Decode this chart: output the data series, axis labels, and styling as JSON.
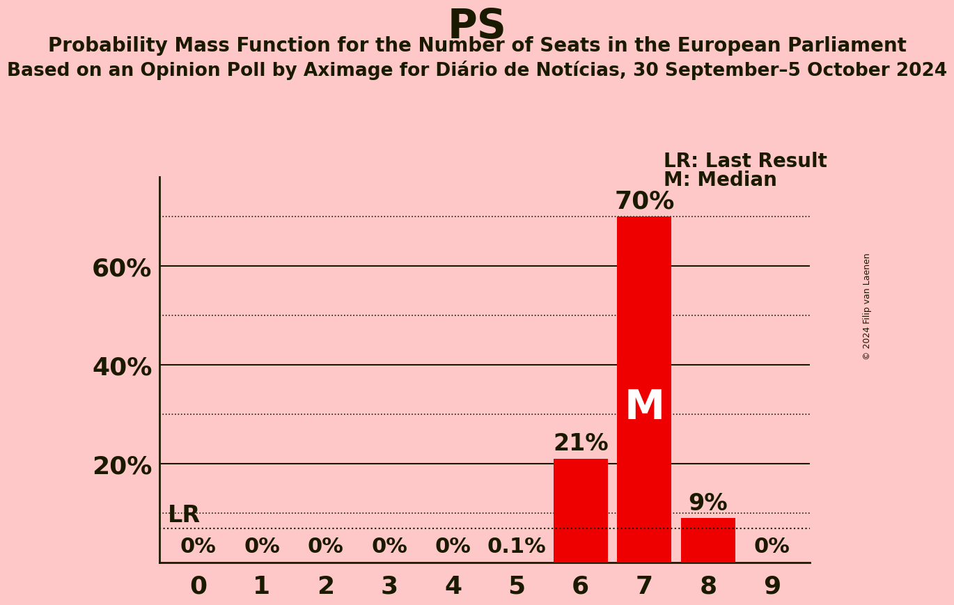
{
  "title": "PS",
  "subtitle1": "Probability Mass Function for the Number of Seats in the European Parliament",
  "subtitle2": "Based on an Opinion Poll by Aximage for Diário de Notícias, 30 September–5 October 2024",
  "copyright": "© 2024 Filip van Laenen",
  "categories": [
    0,
    1,
    2,
    3,
    4,
    5,
    6,
    7,
    8,
    9
  ],
  "values": [
    0.0,
    0.0,
    0.0,
    0.0,
    0.0,
    0.001,
    0.21,
    0.7,
    0.09,
    0.0
  ],
  "bar_labels": [
    "0%",
    "0%",
    "0%",
    "0%",
    "0%",
    "0.1%",
    "21%",
    "",
    "9%",
    "0%"
  ],
  "bar_color": "#ee0000",
  "background_color": "#ffc8c8",
  "text_color": "#1a1a00",
  "yticks": [
    0.2,
    0.4,
    0.6
  ],
  "ytick_labels": [
    "20%",
    "40%",
    "60%"
  ],
  "dotted_lines": [
    0.1,
    0.3,
    0.5,
    0.7
  ],
  "solid_lines": [
    0.2,
    0.4,
    0.6
  ],
  "ylim": [
    0,
    0.78
  ],
  "lr_value": 0.07,
  "lr_label": "LR",
  "median_seat": 7,
  "median_label": "M",
  "bar_label_70": "70%",
  "bar_label_70_seat": 7,
  "legend_lr": "LR: Last Result",
  "legend_m": "M: Median"
}
